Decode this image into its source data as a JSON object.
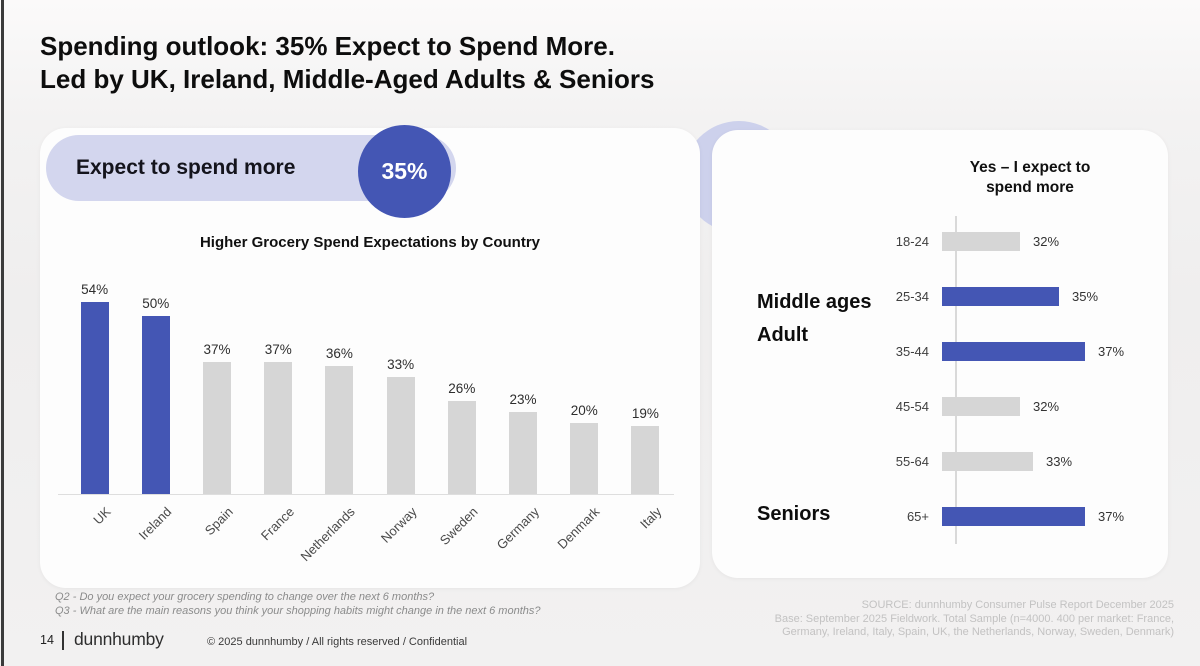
{
  "title": {
    "line1": "Spending outlook: 35% Expect to Spend More.",
    "line2": "Led by UK, Ireland, Middle-Aged Adults & Seniors"
  },
  "highlight_pill": {
    "label": "Expect to spend more",
    "value": "35%"
  },
  "colors": {
    "accent_blue": "#4456b4",
    "bar_gray": "#d6d6d6",
    "pill_lavender": "#d3d6ee"
  },
  "chart_data": [
    {
      "id": "country-spend",
      "type": "bar",
      "orientation": "vertical",
      "title": "Higher Grocery Spend Expectations  by Country",
      "categories": [
        "UK",
        "Ireland",
        "Spain",
        "France",
        "Netherlands",
        "Norway",
        "Sweden",
        "Germany",
        "Denmark",
        "Italy"
      ],
      "values": [
        54,
        50,
        37,
        37,
        36,
        33,
        26,
        23,
        20,
        19
      ],
      "value_suffix": "%",
      "highlighted": [
        true,
        true,
        false,
        false,
        false,
        false,
        false,
        false,
        false,
        false
      ],
      "ylim": [
        0,
        60
      ],
      "grid": false,
      "legend": "none",
      "xlabel": "",
      "ylabel": ""
    },
    {
      "id": "age-spend",
      "type": "bar",
      "orientation": "horizontal",
      "title": "Yes – I expect to spend more",
      "categories": [
        "18-24",
        "25-34",
        "35-44",
        "45-54",
        "55-64",
        "65+"
      ],
      "values": [
        32,
        35,
        37,
        32,
        33,
        37
      ],
      "value_suffix": "%",
      "highlighted": [
        false,
        true,
        true,
        false,
        false,
        true
      ],
      "axis_min_hint": 26,
      "grid": false,
      "legend": "none",
      "annotations": [
        {
          "line1": "Middle ages",
          "line2": "Adult"
        },
        {
          "line1": "Seniors"
        }
      ]
    }
  ],
  "footnotes": {
    "q2": "Q2 - Do you expect your grocery spending to change over the next 6 months?",
    "q3": "Q3 - What are the main reasons you think your shopping habits might change in the next 6 months?"
  },
  "source": {
    "line1": "SOURCE: dunnhumby Consumer Pulse Report December 2025",
    "line2": "Base: September 2025 Fieldwork. Total Sample (n=4000. 400 per market: France,",
    "line3": "Germany, Ireland, Italy, Spain, UK, the Netherlands, Norway, Sweden, Denmark)"
  },
  "footer": {
    "page_number": "14",
    "logo": "dunnhumby",
    "copyright": "© 2025 dunnhumby / All rights reserved / Confidential"
  }
}
